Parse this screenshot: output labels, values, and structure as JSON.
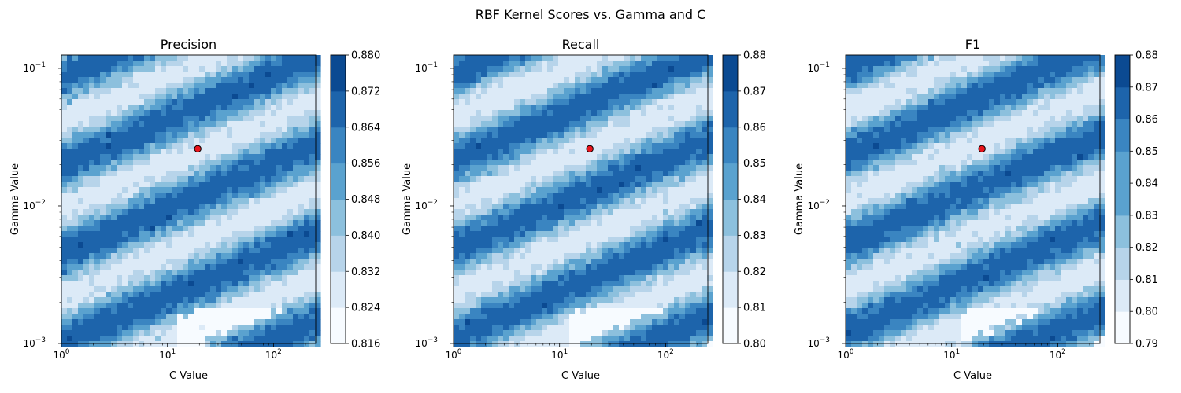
{
  "suptitle": "RBF Kernel Scores vs. Gamma and C",
  "chart_data": [
    {
      "type": "heatmap",
      "subtype": "filled-contour",
      "title": "Precision",
      "xlabel": "C Value",
      "ylabel": "Gamma Value",
      "xscale": "log",
      "yscale": "log",
      "xlim": [
        1,
        250
      ],
      "ylim": [
        0.001,
        0.125
      ],
      "xticks": [
        {
          "value": 1,
          "base": "10",
          "exp": "0"
        },
        {
          "value": 10,
          "base": "10",
          "exp": "1"
        },
        {
          "value": 100,
          "base": "10",
          "exp": "2"
        }
      ],
      "yticks": [
        {
          "value": 0.001,
          "base": "10",
          "exp": "−3"
        },
        {
          "value": 0.01,
          "base": "10",
          "exp": "−2"
        },
        {
          "value": 0.1,
          "base": "10",
          "exp": "−1"
        }
      ],
      "colorbar": {
        "cmap": "Blues",
        "range": [
          0.816,
          0.88
        ],
        "ticks": [
          "0.816",
          "0.824",
          "0.832",
          "0.840",
          "0.848",
          "0.856",
          "0.864",
          "0.872",
          "0.880"
        ]
      },
      "best_point": {
        "C": 19.3,
        "gamma": 0.026
      }
    },
    {
      "type": "heatmap",
      "subtype": "filled-contour",
      "title": "Recall",
      "xlabel": "C Value",
      "ylabel": "Gamma Value",
      "xscale": "log",
      "yscale": "log",
      "xlim": [
        1,
        250
      ],
      "ylim": [
        0.001,
        0.125
      ],
      "xticks": [
        {
          "value": 1,
          "base": "10",
          "exp": "0"
        },
        {
          "value": 10,
          "base": "10",
          "exp": "1"
        },
        {
          "value": 100,
          "base": "10",
          "exp": "2"
        }
      ],
      "yticks": [
        {
          "value": 0.001,
          "base": "10",
          "exp": "−3"
        },
        {
          "value": 0.01,
          "base": "10",
          "exp": "−2"
        },
        {
          "value": 0.1,
          "base": "10",
          "exp": "−1"
        }
      ],
      "colorbar": {
        "cmap": "Blues",
        "range": [
          0.8,
          0.88
        ],
        "ticks": [
          "0.80",
          "0.81",
          "0.82",
          "0.83",
          "0.84",
          "0.85",
          "0.86",
          "0.87",
          "0.88"
        ]
      },
      "best_point": {
        "C": 19.3,
        "gamma": 0.026
      }
    },
    {
      "type": "heatmap",
      "subtype": "filled-contour",
      "title": "F1",
      "xlabel": "C Value",
      "ylabel": "Gamma Value",
      "xscale": "log",
      "yscale": "log",
      "xlim": [
        1,
        250
      ],
      "ylim": [
        0.001,
        0.125
      ],
      "xticks": [
        {
          "value": 1,
          "base": "10",
          "exp": "0"
        },
        {
          "value": 10,
          "base": "10",
          "exp": "1"
        },
        {
          "value": 100,
          "base": "10",
          "exp": "2"
        }
      ],
      "yticks": [
        {
          "value": 0.001,
          "base": "10",
          "exp": "−3"
        },
        {
          "value": 0.01,
          "base": "10",
          "exp": "−2"
        },
        {
          "value": 0.1,
          "base": "10",
          "exp": "−1"
        }
      ],
      "colorbar": {
        "cmap": "Blues",
        "range": [
          0.79,
          0.88
        ],
        "ticks": [
          "0.79",
          "0.80",
          "0.81",
          "0.82",
          "0.83",
          "0.84",
          "0.85",
          "0.86",
          "0.87",
          "0.88"
        ]
      },
      "best_point": {
        "C": 19.3,
        "gamma": 0.026
      }
    }
  ],
  "colors": {
    "levels": [
      "#f7fbff",
      "#dceaf7",
      "#b7d4ea",
      "#8cc0dd",
      "#5aa2cf",
      "#3a85c1",
      "#1d64ab",
      "#0b4a92"
    ],
    "best_point_fill": "#e8141c",
    "best_point_edge": "#000000"
  }
}
